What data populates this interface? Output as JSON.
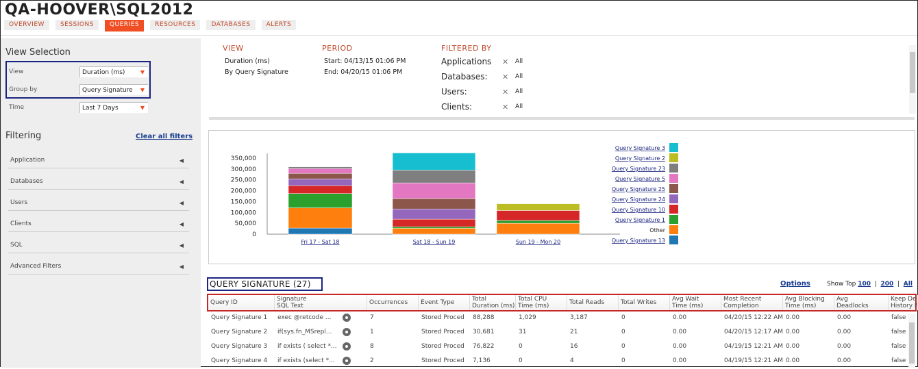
{
  "header": {
    "title": "QA-HOOVER\\SQL2012",
    "tabs": [
      "OVERVIEW",
      "SESSIONS",
      "QUERIES",
      "RESOURCES",
      "DATABASES",
      "ALERTS"
    ],
    "active_tab": "QUERIES"
  },
  "sidebar": {
    "view_selection_title": "View Selection",
    "view_label": "View",
    "view_value": "Duration (ms)",
    "groupby_label": "Group by",
    "groupby_value": "Query Signature",
    "time_label": "Time",
    "time_value": "Last 7 Days",
    "filtering_title": "Filtering",
    "clear_all": "Clear all filters",
    "filters": [
      "Application",
      "Databases",
      "Users",
      "Clients",
      "SQL",
      "Advanced Filters"
    ]
  },
  "summary": {
    "view_heading": "VIEW",
    "view_lines": [
      "Duration (ms)",
      "By Query Signature"
    ],
    "period_heading": "PERIOD",
    "period_lines": [
      "Start: 04/13/15 01:06 PM",
      "End: 04/20/15 01:06 PM"
    ],
    "filtered_heading": "FILTERED BY",
    "filters": [
      {
        "label": "Applications",
        "value": "All"
      },
      {
        "label": "Databases:",
        "value": "All"
      },
      {
        "label": "Users:",
        "value": "All"
      },
      {
        "label": "Clients:",
        "value": "All"
      }
    ]
  },
  "chart_data": {
    "type": "bar",
    "stacked": true,
    "categories": [
      "Fri 17 - Sat 18",
      "Sat 18 - Sun 19",
      "Sun 19 - Mon 20"
    ],
    "yticks": [
      "0",
      "50,000",
      "100,000",
      "150,000",
      "200,000",
      "250,000",
      "300,000",
      "350,000"
    ],
    "ylim": [
      0,
      350000
    ],
    "legend_position": "right",
    "series": [
      {
        "name": "Query Signature 13",
        "color": "#1f77b4",
        "values": [
          28000,
          0,
          0
        ]
      },
      {
        "name": "Other",
        "color": "#ff7f0e",
        "values": [
          93000,
          27000,
          50000
        ]
      },
      {
        "name": "Query Signature 1",
        "color": "#2ca02c",
        "values": [
          66000,
          7000,
          13000
        ]
      },
      {
        "name": "Query Signature 10",
        "color": "#d62728",
        "values": [
          36000,
          35000,
          46000
        ]
      },
      {
        "name": "Query Signature 24",
        "color": "#9467bd",
        "values": [
          31000,
          47000,
          0
        ]
      },
      {
        "name": "Query Signature 25",
        "color": "#8c564b",
        "values": [
          26000,
          48000,
          0
        ]
      },
      {
        "name": "Query Signature 5",
        "color": "#e377c2",
        "values": [
          22000,
          72000,
          0
        ]
      },
      {
        "name": "Query Signature 23",
        "color": "#7f7f7f",
        "values": [
          8000,
          59000,
          0
        ]
      },
      {
        "name": "Query Signature 2",
        "color": "#bcbd22",
        "values": [
          0,
          0,
          31000
        ]
      },
      {
        "name": "Query Signature 3",
        "color": "#17becf",
        "values": [
          0,
          79000,
          0
        ]
      }
    ]
  },
  "grid": {
    "title": "QUERY SIGNATURE (27)",
    "options": "Options",
    "show_top": "Show Top",
    "top_options": [
      "100",
      "200",
      "All"
    ],
    "columns": [
      [
        "Query ID",
        ""
      ],
      [
        "Signature",
        "SQL Text"
      ],
      [
        "Occurrences",
        ""
      ],
      [
        "Event Type",
        ""
      ],
      [
        "Total",
        "Duration (ms)"
      ],
      [
        "Total CPU",
        "Time (ms)"
      ],
      [
        "Total Reads",
        ""
      ],
      [
        "Total Writes",
        ""
      ],
      [
        "Avg Wait",
        "Time (ms)"
      ],
      [
        "Most Recent",
        "Completion"
      ],
      [
        "Avg Blocking",
        "Time (ms)"
      ],
      [
        "Avg",
        "Deadlocks"
      ],
      [
        "Keep De",
        "History F"
      ]
    ],
    "rows": [
      [
        "Query Signature 1",
        "exec @retcode ...",
        "7",
        "Stored Proced",
        "88,288",
        "1,029",
        "3,187",
        "0",
        "0.00",
        "04/20/15 12:22 AM",
        "0.00",
        "0.00",
        "false"
      ],
      [
        "Query Signature 2",
        "if(sys.fn_MSrepl...",
        "1",
        "Stored Proced",
        "30,681",
        "31",
        "21",
        "0",
        "0.00",
        "04/20/15 12:17 AM",
        "0.00",
        "0.00",
        "false"
      ],
      [
        "Query Signature 3",
        "if exists ( select *...",
        "8",
        "Stored Proced",
        "76,822",
        "0",
        "16",
        "0",
        "0.00",
        "04/19/15 12:21 AM",
        "0.00",
        "0.00",
        "false"
      ],
      [
        "Query Signature 4",
        "if exists (select *...",
        "2",
        "Stored Proced",
        "7,136",
        "0",
        "4",
        "0",
        "0.00",
        "04/19/15 12:21 AM",
        "0.00",
        "0.00",
        "false"
      ]
    ]
  }
}
